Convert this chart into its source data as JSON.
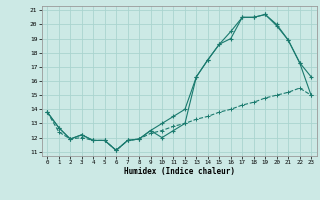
{
  "title": "",
  "xlabel": "Humidex (Indice chaleur)",
  "bg_color": "#cce9e5",
  "grid_color": "#aad4cf",
  "line_color": "#1a7a6e",
  "x_ticks": [
    0,
    1,
    2,
    3,
    4,
    5,
    6,
    7,
    8,
    9,
    10,
    11,
    12,
    13,
    14,
    15,
    16,
    17,
    18,
    19,
    20,
    21,
    22,
    23
  ],
  "y_ticks": [
    11,
    12,
    13,
    14,
    15,
    16,
    17,
    18,
    19,
    20,
    21
  ],
  "ylim": [
    10.7,
    21.3
  ],
  "xlim": [
    -0.5,
    23.5
  ],
  "line1_x": [
    0,
    1,
    2,
    3,
    4,
    5,
    6,
    7,
    8,
    9,
    10,
    11,
    12,
    13,
    14,
    15,
    16,
    17,
    18,
    19,
    20,
    21,
    22,
    23
  ],
  "line1_y": [
    13.8,
    12.7,
    11.9,
    12.2,
    11.8,
    11.8,
    11.1,
    11.8,
    11.9,
    12.5,
    13.0,
    13.5,
    14.0,
    16.3,
    17.5,
    18.6,
    19.5,
    20.5,
    20.5,
    20.7,
    20.0,
    18.9,
    17.3,
    15.0
  ],
  "line2_x": [
    0,
    1,
    2,
    3,
    4,
    5,
    6,
    7,
    8,
    9,
    10,
    11,
    12,
    13,
    14,
    15,
    16,
    17,
    18,
    19,
    20,
    21,
    22,
    23
  ],
  "line2_y": [
    13.8,
    12.7,
    11.9,
    12.2,
    11.8,
    11.8,
    11.1,
    11.8,
    11.9,
    12.5,
    12.0,
    12.5,
    13.0,
    16.3,
    17.5,
    18.6,
    19.0,
    20.5,
    20.5,
    20.7,
    19.9,
    18.9,
    17.3,
    16.3
  ],
  "line3_x": [
    0,
    1,
    2,
    3,
    4,
    5,
    6,
    7,
    8,
    9,
    10,
    11,
    12,
    13,
    14,
    15,
    16,
    17,
    18,
    19,
    20,
    21,
    22,
    23
  ],
  "line3_y": [
    13.8,
    12.4,
    11.9,
    12.0,
    11.8,
    11.8,
    11.1,
    11.8,
    11.9,
    12.3,
    12.5,
    12.8,
    13.0,
    13.3,
    13.5,
    13.8,
    14.0,
    14.3,
    14.5,
    14.8,
    15.0,
    15.2,
    15.5,
    15.0
  ]
}
